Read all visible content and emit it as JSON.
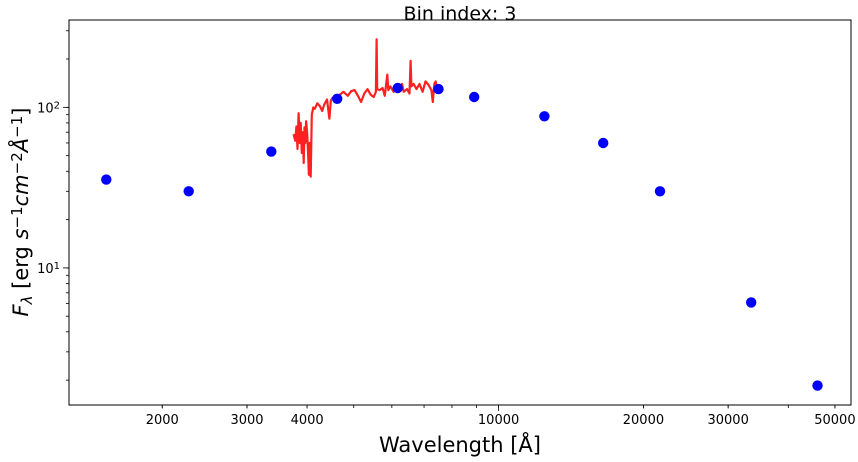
{
  "chart_data": {
    "type": "scatter",
    "title": "Bin index: 3",
    "xlabel": "Wavelength [Å]",
    "ylabel": "F_λ [erg s^-1 cm^-2 Å^-1]",
    "x_scale": "log",
    "y_scale": "log",
    "xlim": [
      1280,
      54000
    ],
    "ylim": [
      1.4,
      350
    ],
    "grid": false,
    "x_ticks": [
      {
        "value": 2000,
        "label": "2000"
      },
      {
        "value": 3000,
        "label": "3000"
      },
      {
        "value": 4000,
        "label": "4000"
      },
      {
        "value": 10000,
        "label": "10000"
      },
      {
        "value": 20000,
        "label": "20000"
      },
      {
        "value": 30000,
        "label": "30000"
      },
      {
        "value": 50000,
        "label": "50000"
      }
    ],
    "y_ticks": [
      {
        "value": 10,
        "label": "10",
        "exp": "1"
      },
      {
        "value": 100,
        "label": "10",
        "exp": "2"
      }
    ],
    "series": [
      {
        "type": "scatter",
        "color": "#0000ff",
        "points": [
          {
            "x": 1530,
            "y": 35.5
          },
          {
            "x": 2270,
            "y": 30
          },
          {
            "x": 3370,
            "y": 53
          },
          {
            "x": 4620,
            "y": 113
          },
          {
            "x": 6170,
            "y": 132
          },
          {
            "x": 7500,
            "y": 130
          },
          {
            "x": 8900,
            "y": 116
          },
          {
            "x": 12450,
            "y": 88
          },
          {
            "x": 16500,
            "y": 60
          },
          {
            "x": 21650,
            "y": 30
          },
          {
            "x": 33500,
            "y": 6.1
          },
          {
            "x": 46000,
            "y": 1.85
          }
        ]
      },
      {
        "type": "line",
        "color": "#ff2020",
        "points": [
          {
            "x": 3750,
            "y": 68
          },
          {
            "x": 3780,
            "y": 62
          },
          {
            "x": 3800,
            "y": 76
          },
          {
            "x": 3820,
            "y": 55
          },
          {
            "x": 3840,
            "y": 92
          },
          {
            "x": 3860,
            "y": 60
          },
          {
            "x": 3880,
            "y": 80
          },
          {
            "x": 3900,
            "y": 52
          },
          {
            "x": 3920,
            "y": 70
          },
          {
            "x": 3935,
            "y": 45
          },
          {
            "x": 3950,
            "y": 75
          },
          {
            "x": 3965,
            "y": 60
          },
          {
            "x": 3980,
            "y": 82
          },
          {
            "x": 4000,
            "y": 70
          },
          {
            "x": 4020,
            "y": 50
          },
          {
            "x": 4035,
            "y": 38
          },
          {
            "x": 4050,
            "y": 60
          },
          {
            "x": 4070,
            "y": 37
          },
          {
            "x": 4090,
            "y": 90
          },
          {
            "x": 4120,
            "y": 100
          },
          {
            "x": 4150,
            "y": 98
          },
          {
            "x": 4200,
            "y": 106
          },
          {
            "x": 4250,
            "y": 102
          },
          {
            "x": 4300,
            "y": 95
          },
          {
            "x": 4340,
            "y": 104
          },
          {
            "x": 4400,
            "y": 112
          },
          {
            "x": 4450,
            "y": 85
          },
          {
            "x": 4480,
            "y": 110
          },
          {
            "x": 4520,
            "y": 115
          },
          {
            "x": 4600,
            "y": 112
          },
          {
            "x": 4680,
            "y": 120
          },
          {
            "x": 4760,
            "y": 125
          },
          {
            "x": 4860,
            "y": 118
          },
          {
            "x": 4940,
            "y": 126
          },
          {
            "x": 5020,
            "y": 128
          },
          {
            "x": 5100,
            "y": 118
          },
          {
            "x": 5180,
            "y": 108
          },
          {
            "x": 5260,
            "y": 122
          },
          {
            "x": 5340,
            "y": 130
          },
          {
            "x": 5420,
            "y": 120
          },
          {
            "x": 5500,
            "y": 116
          },
          {
            "x": 5560,
            "y": 125
          },
          {
            "x": 5577,
            "y": 265
          },
          {
            "x": 5595,
            "y": 130
          },
          {
            "x": 5660,
            "y": 128
          },
          {
            "x": 5740,
            "y": 132
          },
          {
            "x": 5800,
            "y": 118
          },
          {
            "x": 5870,
            "y": 160
          },
          {
            "x": 5900,
            "y": 128
          },
          {
            "x": 5960,
            "y": 135
          },
          {
            "x": 6050,
            "y": 125
          },
          {
            "x": 6150,
            "y": 130
          },
          {
            "x": 6240,
            "y": 128
          },
          {
            "x": 6300,
            "y": 140
          },
          {
            "x": 6350,
            "y": 125
          },
          {
            "x": 6450,
            "y": 130
          },
          {
            "x": 6530,
            "y": 122
          },
          {
            "x": 6563,
            "y": 195
          },
          {
            "x": 6590,
            "y": 135
          },
          {
            "x": 6660,
            "y": 140
          },
          {
            "x": 6750,
            "y": 130
          },
          {
            "x": 6850,
            "y": 140
          },
          {
            "x": 6950,
            "y": 125
          },
          {
            "x": 7050,
            "y": 145
          },
          {
            "x": 7150,
            "y": 138
          },
          {
            "x": 7250,
            "y": 128
          },
          {
            "x": 7300,
            "y": 108
          },
          {
            "x": 7350,
            "y": 140
          },
          {
            "x": 7400,
            "y": 145
          },
          {
            "x": 7450,
            "y": 128
          },
          {
            "x": 7500,
            "y": 138
          }
        ]
      }
    ]
  }
}
